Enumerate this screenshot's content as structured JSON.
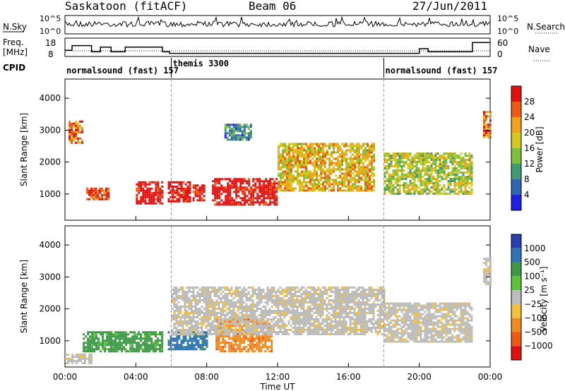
{
  "header": {
    "site": "Saskatoon (fitACF)",
    "beam": "Beam 06",
    "date": "27/Jun/2011"
  },
  "strips": {
    "nsky_label": "N.Sky",
    "nsky_ticks": [
      "10^5",
      "10^0"
    ],
    "nsearch_label": "N.Search",
    "nsearch_ticks": [
      "10^5",
      "10^0"
    ],
    "freq_label": [
      "Freq.",
      "[MHz]"
    ],
    "freq_ticks": [
      "18",
      "8"
    ],
    "nave_label": "Nave",
    "nave_ticks": [
      "60",
      "0"
    ],
    "cpid_label": "CPID",
    "cpid_segments": [
      {
        "label": "normalsound (fast) 157",
        "start_hour": 0,
        "end_hour": 6
      },
      {
        "label": "themis 3300",
        "start_hour": 6,
        "end_hour": 18
      },
      {
        "label": "normalsound (fast) 157",
        "start_hour": 18,
        "end_hour": 24
      }
    ]
  },
  "panels": {
    "power": {
      "ylabel": "Slant Range [km]",
      "colorbar_label": "Power [dB]",
      "colorbar_ticks": [
        "28",
        "24",
        "20",
        "16",
        "12",
        "8",
        "4"
      ],
      "colors": [
        "#e01010",
        "#ee5a14",
        "#f2a218",
        "#d6c81e",
        "#7fbf3a",
        "#3f9a72",
        "#2e66b2",
        "#1f1fe6"
      ]
    },
    "velocity": {
      "ylabel": "Slant Range [km]",
      "colorbar_label": "Velocity [m s⁻¹]",
      "colorbar_ticks": [
        "1000",
        "500",
        "100",
        "25",
        "−25",
        "−100",
        "−500",
        "−1000"
      ],
      "colors": [
        "#2b3fb0",
        "#2e74b6",
        "#3d9848",
        "#5ec23c",
        "#bdbdbd",
        "#f2c23c",
        "#f08a1e",
        "#ee5a14",
        "#e01010"
      ]
    }
  },
  "chart_data": {
    "type": "heatmap",
    "xlabel": "Time UT",
    "x_ticks": [
      "00:00",
      "04:00",
      "08:00",
      "12:00",
      "16:00",
      "20:00",
      "00:00"
    ],
    "xlim_hours": [
      0,
      24
    ],
    "ylim_km": [
      180,
      4600
    ],
    "y_ticks": [
      1000,
      2000,
      3000,
      4000
    ],
    "mode_change_hours": [
      6,
      18
    ],
    "frequency_mhz": [
      {
        "start": 0.0,
        "end": 0.4,
        "mhz": 12
      },
      {
        "start": 0.4,
        "end": 1.5,
        "mhz": 15
      },
      {
        "start": 1.5,
        "end": 2.0,
        "mhz": 11
      },
      {
        "start": 2.0,
        "end": 2.6,
        "mhz": 14
      },
      {
        "start": 2.6,
        "end": 3.4,
        "mhz": 11
      },
      {
        "start": 3.4,
        "end": 5.5,
        "mhz": 14
      },
      {
        "start": 5.5,
        "end": 5.9,
        "mhz": 11
      },
      {
        "start": 5.9,
        "end": 18.0,
        "mhz": 10
      },
      {
        "start": 18.0,
        "end": 20.0,
        "mhz": 10
      },
      {
        "start": 20.0,
        "end": 20.5,
        "mhz": 13
      },
      {
        "start": 20.5,
        "end": 23.0,
        "mhz": 11
      },
      {
        "start": 23.0,
        "end": 24.0,
        "mhz": 17
      }
    ],
    "nave_level": 20,
    "power_regions": [
      {
        "t0": 1.2,
        "t1": 2.4,
        "r0": 850,
        "r1": 1200,
        "db": 24
      },
      {
        "t0": 4.0,
        "t1": 5.5,
        "r0": 700,
        "r1": 1400,
        "db": 28
      },
      {
        "t0": 5.8,
        "t1": 7.0,
        "r0": 800,
        "r1": 1400,
        "db": 28
      },
      {
        "t0": 7.2,
        "t1": 7.9,
        "r0": 800,
        "r1": 1300,
        "db": 28
      },
      {
        "t0": 8.3,
        "t1": 12.0,
        "r0": 700,
        "r1": 1500,
        "db": 28
      },
      {
        "t0": 0.2,
        "t1": 1.0,
        "r0": 2600,
        "r1": 3300,
        "db": 20
      },
      {
        "t0": 9.0,
        "t1": 10.5,
        "r0": 2700,
        "r1": 3200,
        "db": 6
      },
      {
        "t0": 12.0,
        "t1": 17.5,
        "r0": 1100,
        "r1": 2600,
        "db": 16
      },
      {
        "t0": 18.0,
        "t1": 23.0,
        "r0": 1000,
        "r1": 2300,
        "db": 12
      },
      {
        "t0": 23.6,
        "t1": 24.0,
        "r0": 2800,
        "r1": 3600,
        "db": 20
      }
    ],
    "velocity_regions": [
      {
        "t0": 1.0,
        "t1": 5.5,
        "r0": 700,
        "r1": 1300,
        "v": 100
      },
      {
        "t0": 5.8,
        "t1": 8.0,
        "r0": 750,
        "r1": 1300,
        "v": 500
      },
      {
        "t0": 8.5,
        "t1": 11.7,
        "r0": 700,
        "r1": 1700,
        "v": -100
      },
      {
        "t0": 0.0,
        "t1": 1.5,
        "r0": 300,
        "r1": 600,
        "v": 0
      },
      {
        "t0": 6.0,
        "t1": 18.0,
        "r0": 1200,
        "r1": 2700,
        "v": 0
      },
      {
        "t0": 18.0,
        "t1": 23.0,
        "r0": 1000,
        "r1": 2200,
        "v": 0
      },
      {
        "t0": 23.6,
        "t1": 24.0,
        "r0": 2800,
        "r1": 3600,
        "v": 0
      }
    ]
  }
}
